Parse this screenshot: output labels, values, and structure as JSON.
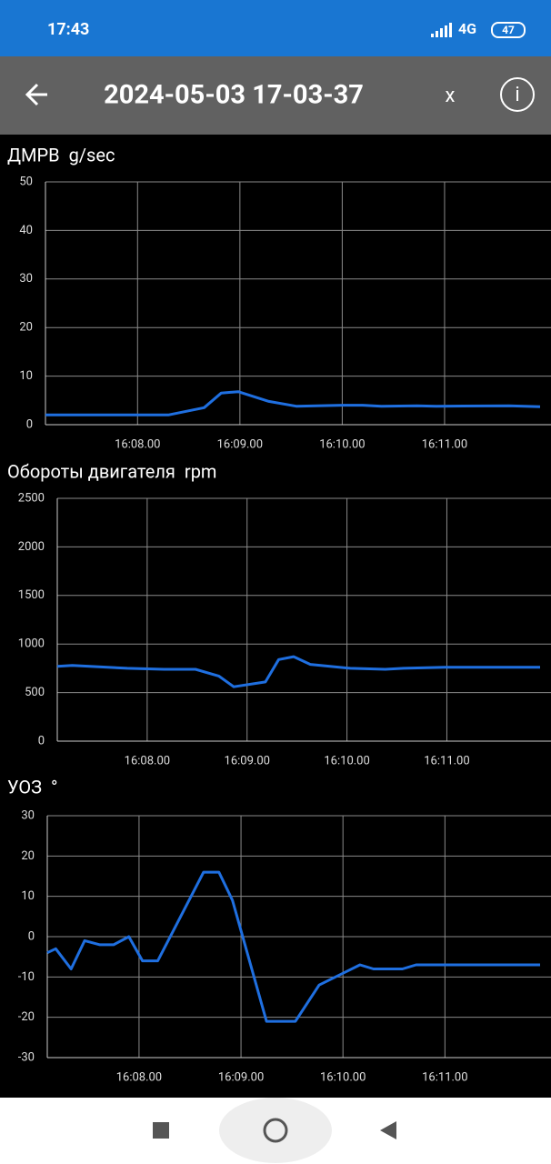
{
  "status_bar": {
    "time": "17:43",
    "network": "4G",
    "battery": "47"
  },
  "header": {
    "title": "2024-05-03 17-03-37",
    "close": "x",
    "info": "i"
  },
  "chart_data": [
    {
      "type": "line",
      "title": "ДМРВ",
      "unit": "g/sec",
      "color": "#1f6fe0",
      "grid": true,
      "x": [
        "16:07.06",
        "16:07.41",
        "16:07.59",
        "16:08.18",
        "16:08.39",
        "16:08.49",
        "16:08.59",
        "16:09.17",
        "16:09.33",
        "16:10.00",
        "16:10.12",
        "16:10.23",
        "16:10.44",
        "16:10.55",
        "16:11.38",
        "16:11.56"
      ],
      "values": [
        2,
        2,
        2,
        2,
        3.5,
        6.5,
        6.8,
        4.8,
        3.8,
        4.0,
        4.0,
        3.8,
        3.9,
        3.8,
        3.9,
        3.7
      ],
      "xlim": [
        "16:07.06",
        "16:11.56"
      ],
      "xticks": [
        "16:08.00",
        "16:09.00",
        "16:10.00",
        "16:11.00"
      ],
      "ylim": [
        0,
        50
      ],
      "yticks": [
        0,
        10,
        20,
        30,
        40,
        50
      ]
    },
    {
      "type": "line",
      "title": "Обороты двигателя",
      "unit": "rpm",
      "color": "#1f6fe0",
      "grid": true,
      "x": [
        "16:07.06",
        "16:07.15",
        "16:07.48",
        "16:08.10",
        "16:08.29",
        "16:08.43",
        "16:08.52",
        "16:09.11",
        "16:09.19",
        "16:09.28",
        "16:09.38",
        "16:10.02",
        "16:10.23",
        "16:10.34",
        "16:10.59",
        "16:11.56"
      ],
      "values": [
        770,
        780,
        750,
        740,
        740,
        670,
        560,
        610,
        840,
        870,
        790,
        750,
        740,
        750,
        760,
        760
      ],
      "xlim": [
        "16:07.06",
        "16:11.56"
      ],
      "xticks": [
        "16:08.00",
        "16:09.00",
        "16:10.00",
        "16:11.00"
      ],
      "ylim": [
        0,
        2500
      ],
      "yticks": [
        0,
        500,
        1000,
        1500,
        2000,
        2500
      ]
    },
    {
      "type": "line",
      "title": "УОЗ",
      "unit": "°",
      "color": "#1f6fe0",
      "grid": true,
      "x": [
        "16:07.06",
        "16:07.11",
        "16:07.20",
        "16:07.28",
        "16:07.37",
        "16:07.45",
        "16:07.54",
        "16:08.02",
        "16:08.11",
        "16:08.38",
        "16:08.47",
        "16:08.55",
        "16:09.15",
        "16:09.32",
        "16:09.46",
        "16:10.10",
        "16:10.18",
        "16:10.35",
        "16:10.43",
        "16:11.56"
      ],
      "values": [
        -4,
        -3,
        -8,
        -1,
        -2,
        -2,
        0,
        -6,
        -6,
        16,
        16,
        9,
        -21,
        -21,
        -12,
        -7,
        -8,
        -8,
        -7,
        -7
      ],
      "xlim": [
        "16:07.06",
        "16:11.56"
      ],
      "xticks": [
        "16:08.00",
        "16:09.00",
        "16:10.00",
        "16:11.00"
      ],
      "ylim": [
        -30,
        30
      ],
      "yticks": [
        -30,
        -20,
        -10,
        0,
        10,
        20,
        30
      ]
    }
  ]
}
